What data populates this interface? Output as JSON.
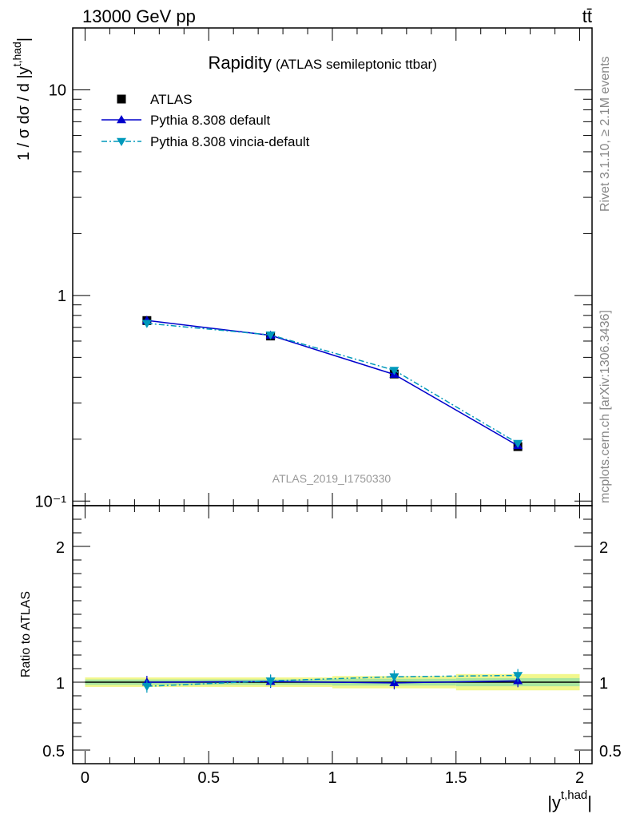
{
  "header": {
    "left": "13000 GeV pp",
    "right": "tt̄"
  },
  "side_labels": {
    "rivet": "Rivet 3.1.10, ≥ 2.1M events",
    "mcplots": "mcplots.cern.ch [arXiv:1306.3436]"
  },
  "watermark": "ATLAS_2019_I1750330",
  "colors": {
    "atlas": "#000000",
    "pythia_default": "#0000cc",
    "pythia_vincia": "#0099bb",
    "band_yellow": "#f2f78c",
    "band_green": "#a8e6a0"
  },
  "chart_data": [
    {
      "type": "line",
      "panel": "main",
      "title": "Rapidity",
      "subtitle": "(ATLAS semileptonic ttbar)",
      "ylabel": "1 / σ dσ / d |y^{t,had}|",
      "yscale": "log",
      "ylim": [
        0.095,
        20
      ],
      "xlim": [
        -0.05,
        2.05
      ],
      "ytick_labels": [
        "10",
        "1",
        "10⁻¹"
      ],
      "ytick_values": [
        10,
        1,
        0.1
      ],
      "legend_position": "top-left",
      "series": [
        {
          "name": "ATLAS",
          "marker": "square",
          "x": [
            0.25,
            0.75,
            1.25,
            1.75
          ],
          "values": [
            0.755,
            0.635,
            0.415,
            0.184
          ]
        },
        {
          "name": "Pythia 8.308 default",
          "marker": "triangle-up",
          "line": "solid",
          "x": [
            0.25,
            0.75,
            1.25,
            1.75
          ],
          "values": [
            0.756,
            0.64,
            0.413,
            0.186
          ]
        },
        {
          "name": "Pythia 8.308 vincia-default",
          "marker": "triangle-down",
          "line": "dashdot",
          "x": [
            0.25,
            0.75,
            1.25,
            1.75
          ],
          "values": [
            0.732,
            0.643,
            0.433,
            0.191
          ]
        }
      ]
    },
    {
      "type": "line",
      "panel": "ratio",
      "xlabel": "|y^{t,had}|",
      "ylabel": "Ratio to ATLAS",
      "ylim": [
        0.4,
        2.3
      ],
      "xlim": [
        -0.05,
        2.05
      ],
      "xtick_labels": [
        "0",
        "0.5",
        "1",
        "1.5",
        "2"
      ],
      "xtick_values": [
        0,
        0.5,
        1,
        1.5,
        2
      ],
      "ytick_labels": [
        "0.5",
        "1",
        "2"
      ],
      "ytick_values": [
        0.5,
        1,
        2
      ],
      "bands": [
        {
          "x": [
            0,
            1
          ],
          "yellow": [
            0.965,
            1.035
          ],
          "green": [
            0.98,
            1.02
          ]
        },
        {
          "x": [
            1,
            1.5
          ],
          "yellow": [
            0.955,
            1.045
          ],
          "green": [
            0.975,
            1.025
          ]
        },
        {
          "x": [
            1.5,
            2
          ],
          "yellow": [
            0.94,
            1.06
          ],
          "green": [
            0.97,
            1.03
          ]
        }
      ],
      "series": [
        {
          "name": "Pythia 8.308 default",
          "x": [
            0.25,
            0.75,
            1.25,
            1.75
          ],
          "values": [
            1.0,
            1.005,
            0.995,
            1.01
          ]
        },
        {
          "name": "Pythia 8.308 vincia-default",
          "x": [
            0.25,
            0.75,
            1.25,
            1.75
          ],
          "values": [
            0.97,
            1.01,
            1.04,
            1.05
          ]
        }
      ]
    }
  ]
}
